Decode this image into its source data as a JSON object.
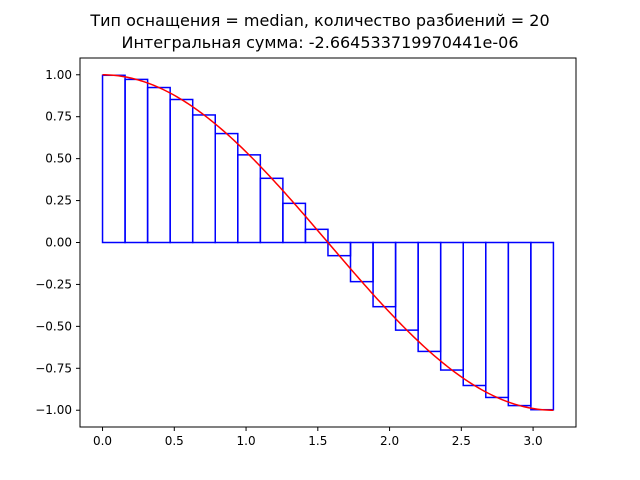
{
  "chart_data": {
    "type": "bar",
    "title": "Тип оснащения = median, количество разбиений = 20",
    "subtitle": "Интегральная сумма: -2.664533719970441e-06",
    "xlabel": "",
    "ylabel": "",
    "xlim": [
      -0.157,
      3.299
    ],
    "ylim": [
      -1.1,
      1.1
    ],
    "grid": false,
    "x_ticks": [
      "0.0",
      "0.5",
      "1.0",
      "1.5",
      "2.0",
      "2.5",
      "3.0"
    ],
    "x_tick_values": [
      0.0,
      0.5,
      1.0,
      1.5,
      2.0,
      2.5,
      3.0
    ],
    "y_ticks": [
      "−1.00",
      "−0.75",
      "−0.50",
      "−0.25",
      "0.00",
      "0.25",
      "0.50",
      "0.75",
      "1.00"
    ],
    "y_tick_values": [
      -1.0,
      -0.75,
      -0.5,
      -0.25,
      0.0,
      0.25,
      0.5,
      0.75,
      1.0
    ],
    "curve": {
      "function": "cos(x)",
      "x_range": [
        0,
        3.14159
      ],
      "color": "#ff0000"
    },
    "bars": {
      "x_start": 0.0,
      "x_end": 3.14159,
      "count": 20,
      "color": "#0000ff",
      "values": [
        0.9969,
        0.9724,
        0.9239,
        0.8526,
        0.7604,
        0.6494,
        0.5225,
        0.3827,
        0.2334,
        0.0785,
        -0.0785,
        -0.2334,
        -0.3827,
        -0.5225,
        -0.6494,
        -0.7604,
        -0.8526,
        -0.9239,
        -0.9724,
        -0.9969
      ]
    }
  }
}
